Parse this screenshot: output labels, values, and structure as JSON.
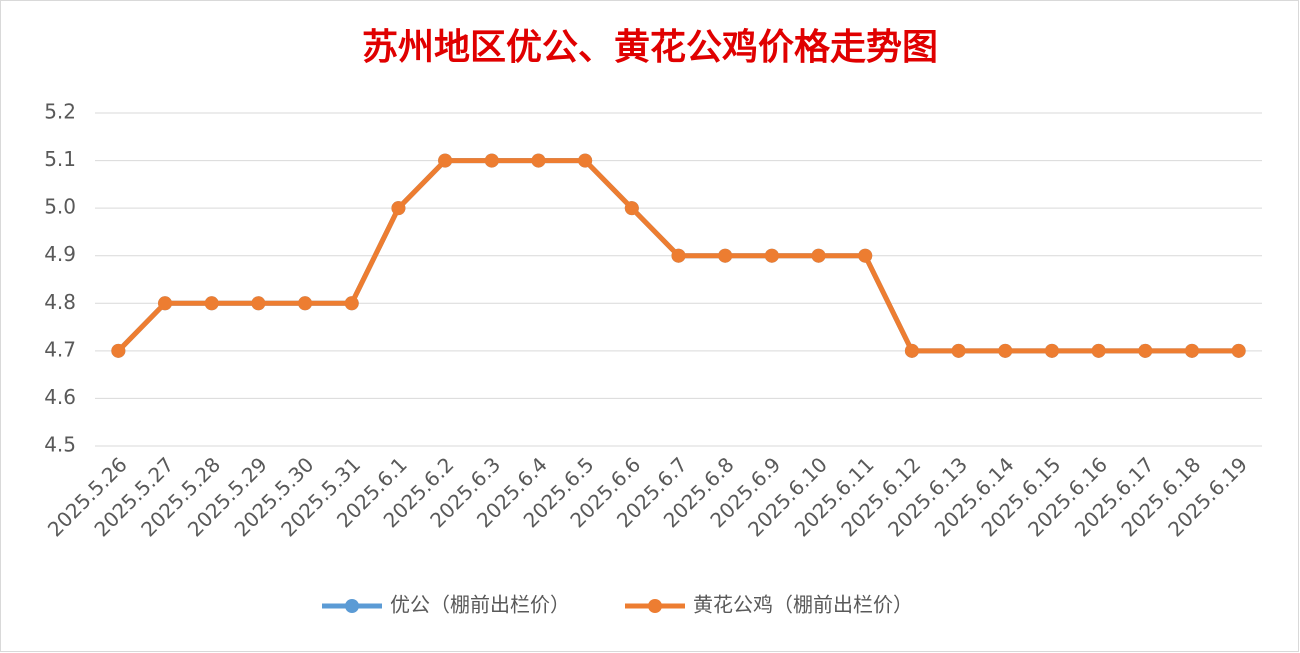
{
  "chart_data": {
    "type": "line",
    "title": "苏州地区优公、黄花公鸡价格走势图",
    "categories": [
      "2025.5.26",
      "2025.5.27",
      "2025.5.28",
      "2025.5.29",
      "2025.5.30",
      "2025.5.31",
      "2025.6.1",
      "2025.6.2",
      "2025.6.3",
      "2025.6.4",
      "2025.6.5",
      "2025.6.6",
      "2025.6.7",
      "2025.6.8",
      "2025.6.9",
      "2025.6.10",
      "2025.6.11",
      "2025.6.12",
      "2025.6.13",
      "2025.6.14",
      "2025.6.15",
      "2025.6.16",
      "2025.6.17",
      "2025.6.18",
      "2025.6.19"
    ],
    "series": [
      {
        "name": "优公（棚前出栏价）",
        "color": "#5b9bd5",
        "values": [
          4.7,
          4.8,
          4.8,
          4.8,
          4.8,
          4.8,
          5.0,
          5.1,
          5.1,
          5.1,
          5.1,
          5.0,
          4.9,
          4.9,
          4.9,
          4.9,
          4.9,
          4.7,
          4.7,
          4.7,
          4.7,
          4.7,
          4.7,
          4.7,
          4.7
        ]
      },
      {
        "name": "黄花公鸡（棚前出栏价）",
        "color": "#ed7d31",
        "values": [
          4.7,
          4.8,
          4.8,
          4.8,
          4.8,
          4.8,
          5.0,
          5.1,
          5.1,
          5.1,
          5.1,
          5.0,
          4.9,
          4.9,
          4.9,
          4.9,
          4.9,
          4.7,
          4.7,
          4.7,
          4.7,
          4.7,
          4.7,
          4.7,
          4.7
        ]
      }
    ],
    "ylim": [
      4.5,
      5.2
    ],
    "yticks": [
      4.5,
      4.6,
      4.7,
      4.8,
      4.9,
      {
        "value": 5,
        "label": "5.0"
      },
      5.1,
      5.2
    ],
    "grid": true,
    "legend": "bottom"
  }
}
